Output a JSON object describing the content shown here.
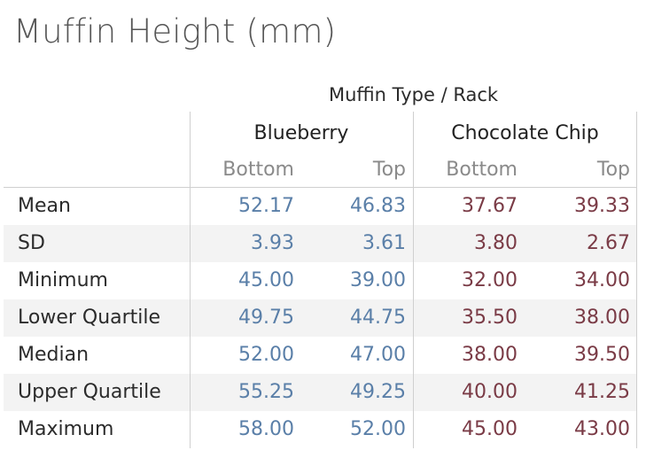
{
  "title": "Muffin Height (mm)",
  "chart_data": {
    "type": "table",
    "title": "Muffin Height (mm)",
    "column_header_title": "Muffin Type  /  Rack",
    "groups": [
      {
        "name": "Blueberry",
        "subcolumns": [
          "Bottom",
          "Top"
        ],
        "color": "#5a7fa8"
      },
      {
        "name": "Chocolate Chip",
        "subcolumns": [
          "Bottom",
          "Top"
        ],
        "color": "#7a3b46"
      }
    ],
    "rows": [
      {
        "label": "Mean",
        "values": [
          "52.17",
          "46.83",
          "37.67",
          "39.33"
        ]
      },
      {
        "label": "SD",
        "values": [
          "3.93",
          "3.61",
          "3.80",
          "2.67"
        ]
      },
      {
        "label": "Minimum",
        "values": [
          "45.00",
          "39.00",
          "32.00",
          "34.00"
        ]
      },
      {
        "label": "Lower Quartile",
        "values": [
          "49.75",
          "44.75",
          "35.50",
          "38.00"
        ]
      },
      {
        "label": "Median",
        "values": [
          "52.00",
          "47.00",
          "38.00",
          "39.50"
        ]
      },
      {
        "label": "Upper Quartile",
        "values": [
          "55.25",
          "49.25",
          "40.00",
          "41.25"
        ]
      },
      {
        "label": "Maximum",
        "values": [
          "58.00",
          "52.00",
          "45.00",
          "43.00"
        ]
      }
    ],
    "band_color": "#f3f3f3"
  }
}
